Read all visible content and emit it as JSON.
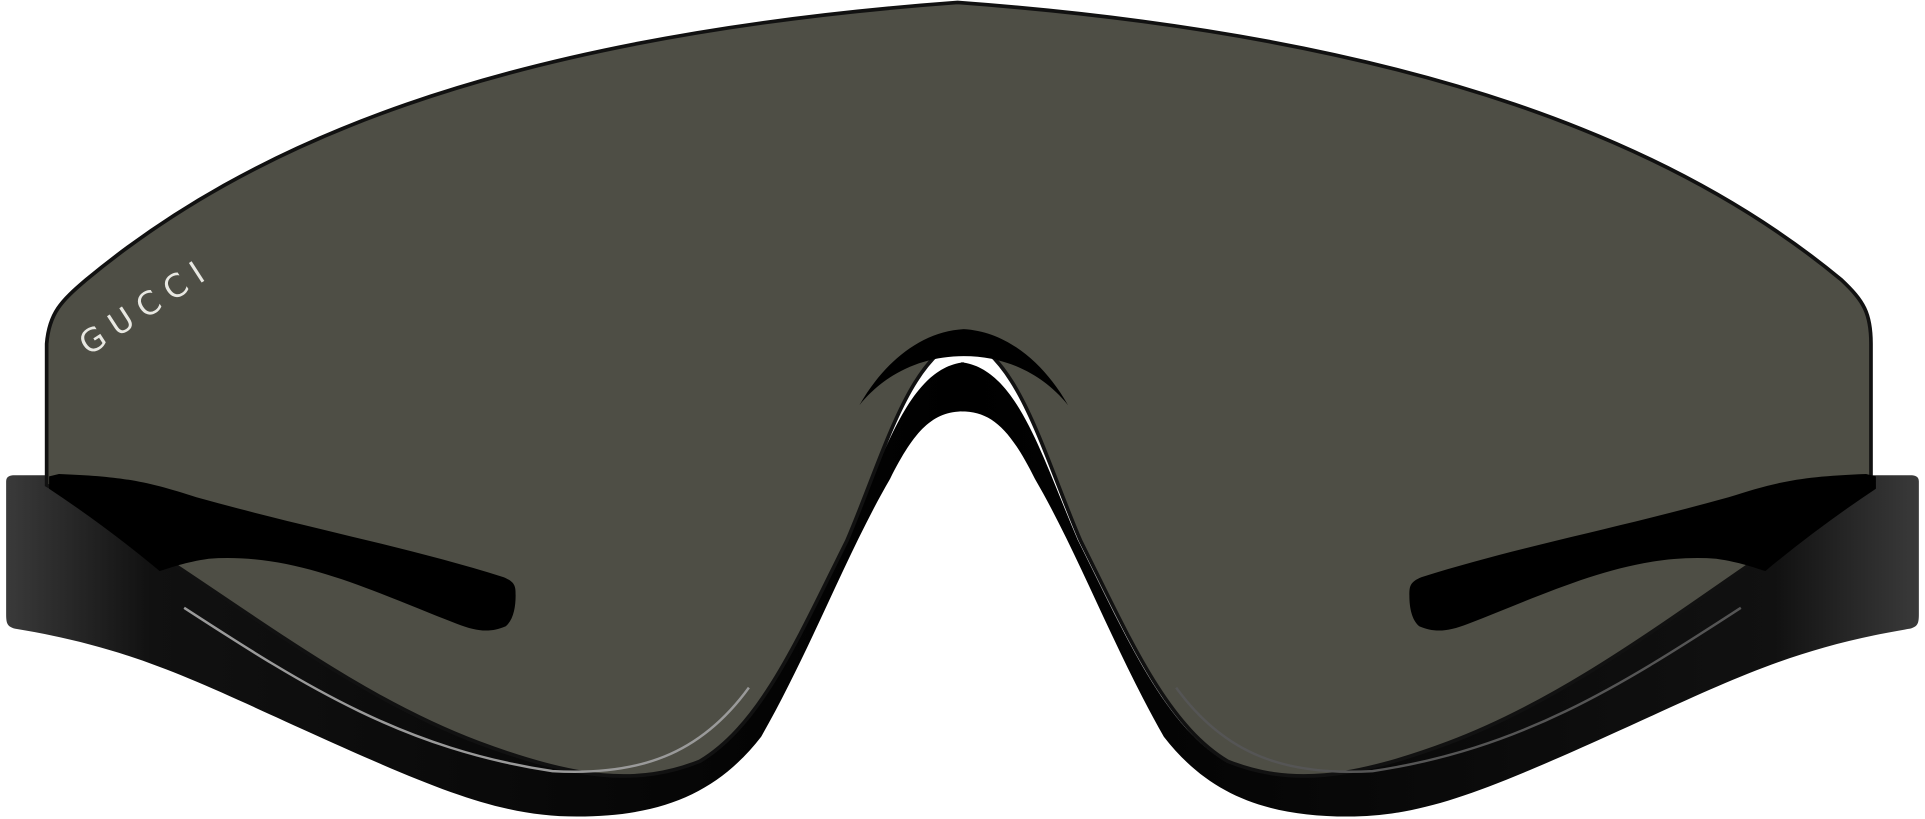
{
  "product": {
    "brand_logo": "GUCCI",
    "colors": {
      "background": "#ffffff",
      "lens": "#4e4e45",
      "frame": "#000000",
      "logo": "#e8e8e2"
    }
  }
}
